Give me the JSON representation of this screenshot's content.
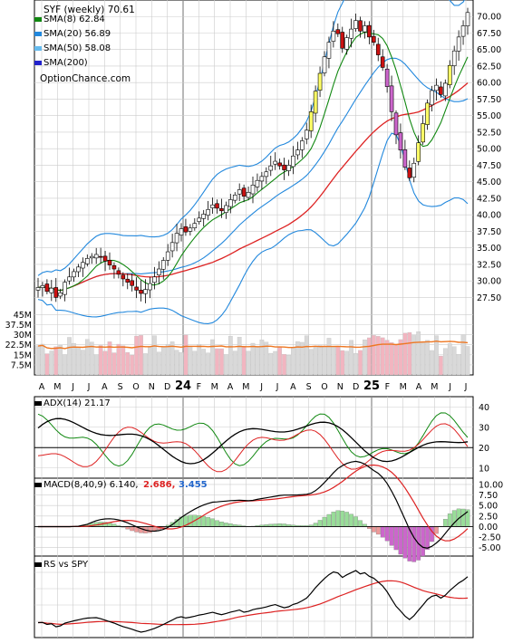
{
  "chart_data": {
    "type": "stock-chart",
    "title": "SYF (weekly) 70.61",
    "watermark": "OptionChance.com",
    "colors": {
      "up_fill": "#ffff66",
      "down_fill": "#cc1111",
      "up_fill_alt": "#ffffff",
      "sma8": "#118811",
      "sma20": "#2288dd",
      "sma50": "#66bbee",
      "sma200": "#2222cc",
      "red_line": "#dd2222",
      "volume_up": "#d9d9d9",
      "volume_down": "#f2b5c0",
      "volume_avg": "#ee7722",
      "macd_up": "#99dd99",
      "macd_down": "#ee9999",
      "macd_deep": "#cc66cc",
      "macd_signal_label": "#dd2222",
      "macd_hist_label": "#2266cc",
      "grid": "#cccccc"
    },
    "legend": [
      {
        "label": "SMA(8) 62.84",
        "color": "#118811"
      },
      {
        "label": "SMA(20) 56.89",
        "color": "#2288dd"
      },
      {
        "label": "SMA(50) 58.08",
        "color": "#66bbee"
      },
      {
        "label": "SMA(200)",
        "color": "#2222cc"
      }
    ],
    "x_labels": [
      "A",
      "M",
      "J",
      "J",
      "A",
      "S",
      "O",
      "N",
      "D",
      "24",
      "F",
      "M",
      "A",
      "M",
      "J",
      "J",
      "A",
      "S",
      "O",
      "N",
      "D",
      "25",
      "F",
      "M",
      "A",
      "M",
      "J",
      "J"
    ],
    "x_bold": [
      "24",
      "25"
    ],
    "price_axis": {
      "ticks": [
        "70.00",
        "67.50",
        "65.00",
        "62.50",
        "60.00",
        "57.50",
        "55.00",
        "52.50",
        "50.00",
        "47.50",
        "45.00",
        "42.50",
        "40.00",
        "37.50",
        "35.00",
        "32.50",
        "30.00",
        "27.50"
      ],
      "ylim": [
        25.5,
        72.5
      ]
    },
    "volume_axis": {
      "ticks": [
        "45M",
        "37.5M",
        "30M",
        "22.5M",
        "15M",
        "7.5M"
      ],
      "ylim": [
        0,
        50
      ]
    },
    "price_closes": [
      29.0,
      29.3,
      28.4,
      28.9,
      27.5,
      28.2,
      29.8,
      30.6,
      31.4,
      32.1,
      32.8,
      33.4,
      33.7,
      34.0,
      33.6,
      33.0,
      32.4,
      31.8,
      31.0,
      30.3,
      29.8,
      29.3,
      28.6,
      28.1,
      28.7,
      29.6,
      30.6,
      31.8,
      33.1,
      34.4,
      35.8,
      37.2,
      37.9,
      37.4,
      38.0,
      38.7,
      39.5,
      40.1,
      40.8,
      41.5,
      41.0,
      40.6,
      41.4,
      42.3,
      43.0,
      43.8,
      42.8,
      43.4,
      44.5,
      45.2,
      45.8,
      46.5,
      47.4,
      48.1,
      47.4,
      46.8,
      47.5,
      48.9,
      49.8,
      51.2,
      52.8,
      55.6,
      58.7,
      61.4,
      63.9,
      66.1,
      67.8,
      67.4,
      65.2,
      66.8,
      68.1,
      69.4,
      67.8,
      68.6,
      66.9,
      66.1,
      64.2,
      62.3,
      59.4,
      55.6,
      52.1,
      49.8,
      47.2,
      45.6,
      47.8,
      50.9,
      53.8,
      56.9,
      58.8,
      59.6,
      58.2,
      59.9,
      62.6,
      64.8,
      66.9,
      68.6,
      70.61
    ],
    "adx": {
      "label": "ADX(14) 21.17",
      "ticks": [
        "40",
        "30",
        "20",
        "10"
      ],
      "ylim": [
        5,
        45
      ]
    },
    "macd": {
      "label": "MACD(8,40,9) 6.140,",
      "signal": "2.686,",
      "hist": "3.455",
      "ticks": [
        "10.00",
        "7.50",
        "5.00",
        "2.50",
        "0.00",
        "-2.50",
        "-5.00"
      ],
      "ylim": [
        -7,
        11.5
      ]
    },
    "rs": {
      "label": "RS vs SPY"
    }
  }
}
